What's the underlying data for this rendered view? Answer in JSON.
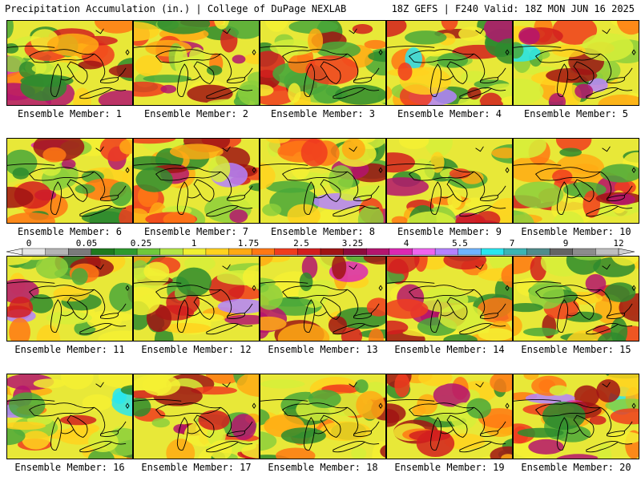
{
  "header": {
    "left": "Precipitation Accumulation (in.) | College of DuPage NEXLAB",
    "right": "18Z GEFS | F240 Valid: 18Z MON JUN 16 2025"
  },
  "members": [
    "Ensemble Member: 1",
    "Ensemble Member: 2",
    "Ensemble Member: 3",
    "Ensemble Member: 4",
    "Ensemble Member: 5",
    "Ensemble Member: 6",
    "Ensemble Member: 7",
    "Ensemble Member: 8",
    "Ensemble Member: 9",
    "Ensemble Member: 10",
    "Ensemble Member: 11",
    "Ensemble Member: 12",
    "Ensemble Member: 13",
    "Ensemble Member: 14",
    "Ensemble Member: 15",
    "Ensemble Member: 16",
    "Ensemble Member: 17",
    "Ensemble Member: 18",
    "Ensemble Member: 19",
    "Ensemble Member: 20"
  ],
  "colorbar": {
    "labels": [
      "0",
      "0.05",
      "0.25",
      "1",
      "1.75",
      "2.5",
      "3.25",
      "4",
      "5.5",
      "7",
      "9",
      "12"
    ],
    "colors": [
      "#e6e6e6",
      "#b4b4b4",
      "#7a7a7a",
      "#1e7a1e",
      "#2e9a2e",
      "#6fc83c",
      "#b4e646",
      "#f0f032",
      "#ffd21e",
      "#ffaa14",
      "#ff7814",
      "#f03c1e",
      "#d21e1e",
      "#a01414",
      "#8c0a3c",
      "#b4146e",
      "#dc28b4",
      "#f064f0",
      "#b482ff",
      "#6eb4ff",
      "#28e6f0",
      "#3cb4b4",
      "#508c8c",
      "#646464",
      "#8c8c8c",
      "#bebebe"
    ]
  }
}
